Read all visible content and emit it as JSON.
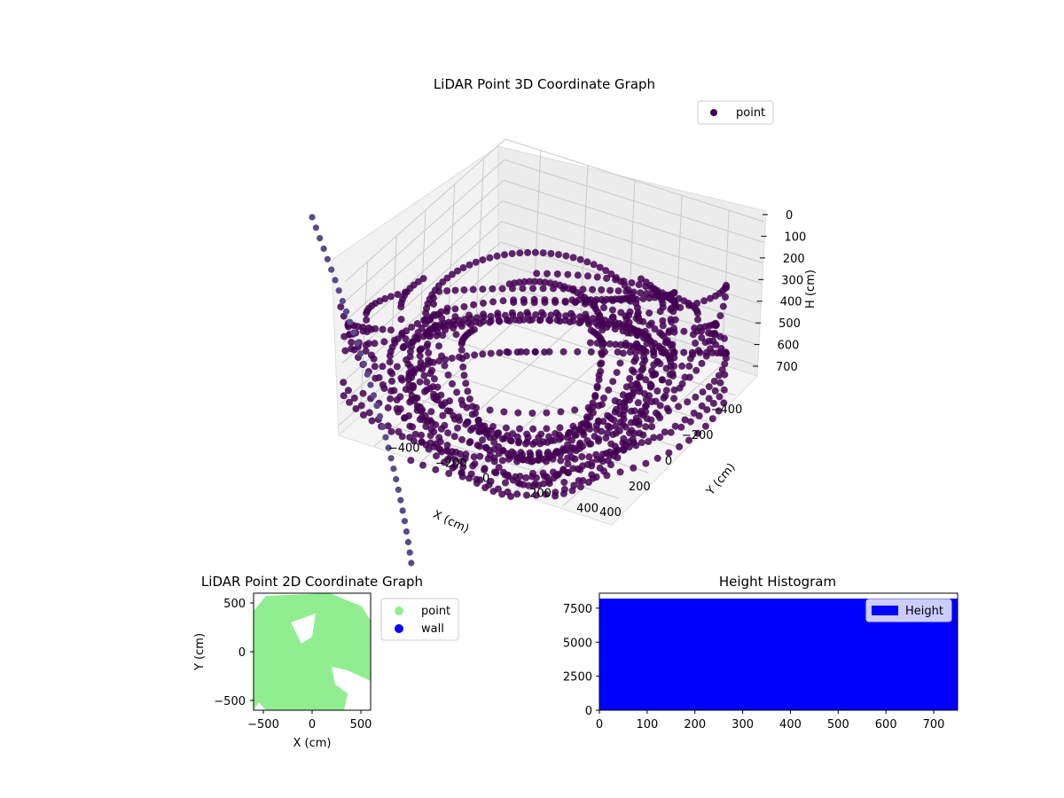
{
  "chart_data": [
    {
      "type": "scatter",
      "projection": "3d",
      "title": "LiDAR Point 3D Coordinate Graph",
      "xlabel": "X (cm)",
      "ylabel": "Y (cm)",
      "zlabel": "H (cm)",
      "x_ticks": [
        -400,
        -200,
        0,
        200,
        400
      ],
      "y_ticks": [
        -400,
        -200,
        0,
        200,
        400
      ],
      "z_ticks": [
        0,
        100,
        200,
        300,
        400,
        500,
        600,
        700
      ],
      "xlim": [
        -550,
        550
      ],
      "ylim": [
        -550,
        550
      ],
      "zlim": [
        0,
        750
      ],
      "z_inverted": true,
      "grid": true,
      "legend": {
        "entries": [
          "point"
        ],
        "placement": "top-right"
      },
      "series": [
        {
          "name": "point",
          "color": "#440154",
          "description_values": "dense scan rings around the sensor"
        }
      ]
    },
    {
      "type": "scatter",
      "title": "LiDAR Point 2D Coordinate Graph",
      "xlabel": "X (cm)",
      "ylabel": "Y (cm)",
      "x_ticks": [
        -500,
        0,
        500
      ],
      "y_ticks": [
        -500,
        0,
        500
      ],
      "xlim": [
        -600,
        600
      ],
      "ylim": [
        -600,
        600
      ],
      "legend": {
        "entries": [
          "point",
          "wall"
        ],
        "placement": "outside-right"
      },
      "series": [
        {
          "name": "point",
          "color": "#90ee90"
        },
        {
          "name": "wall",
          "color": "#0000ff"
        }
      ]
    },
    {
      "type": "bar",
      "title": "Height Histogram",
      "x_ticks": [
        0,
        100,
        200,
        300,
        400,
        500,
        600,
        700
      ],
      "y_ticks": [
        0,
        2500,
        5000,
        7500
      ],
      "xlim": [
        0,
        750
      ],
      "ylim": [
        0,
        8600
      ],
      "bin_value": 8200,
      "legend": {
        "entries": [
          "Height"
        ],
        "placement": "top-right"
      },
      "series": [
        {
          "name": "Height",
          "color": "#0000ff"
        }
      ]
    }
  ]
}
